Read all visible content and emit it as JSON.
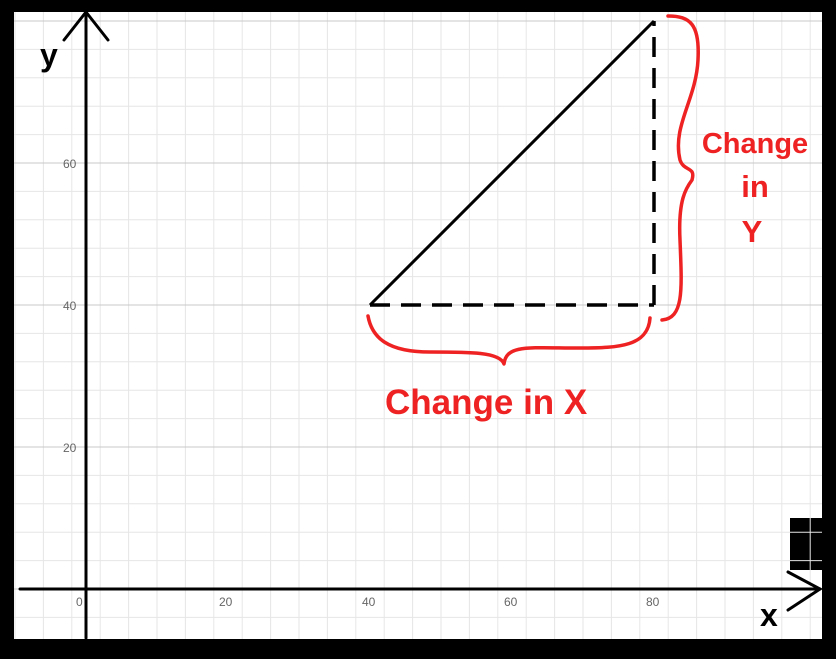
{
  "axes": {
    "x_label": "x",
    "y_label": "y",
    "x_origin_label": "0",
    "x_ticks": [
      "20",
      "40",
      "60",
      "80"
    ],
    "y_ticks": [
      "20",
      "40",
      "60"
    ]
  },
  "chart_data": {
    "type": "line",
    "grid": true,
    "xlim": [
      0,
      100
    ],
    "ylim": [
      0,
      80
    ],
    "triangle": {
      "start": [
        40,
        40
      ],
      "end": [
        80,
        80
      ],
      "corner": [
        80,
        40
      ]
    }
  },
  "annotations": {
    "change_x": "Change in  X",
    "change_y_line1": "Change",
    "change_y_line2": "in",
    "change_y_line3": "Y"
  },
  "colors": {
    "annotation": "#ee2222",
    "grid_minor": "#e6e6e6",
    "grid_major": "#c8c8c8",
    "frame": "#000000"
  }
}
